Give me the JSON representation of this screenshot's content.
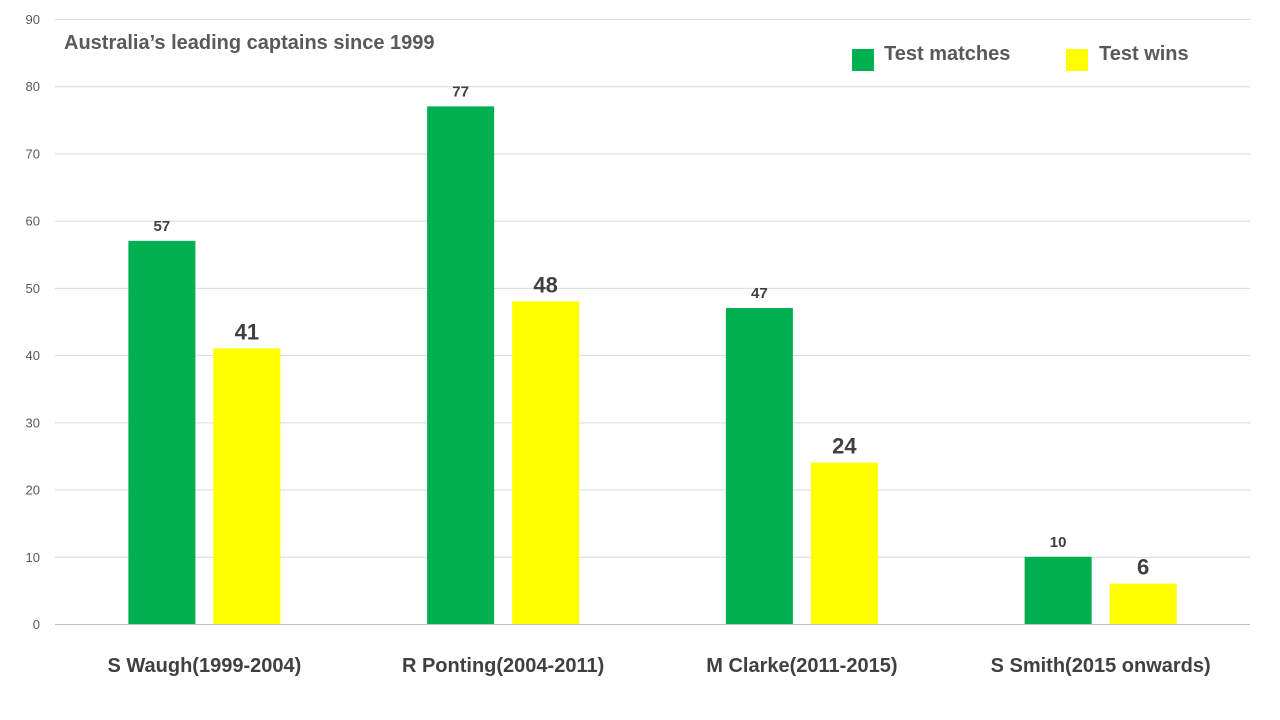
{
  "chart_data": {
    "type": "bar",
    "title": "Australia’s leading captains since 1999",
    "categories": [
      "S Waugh(1999-2004)",
      "R Ponting(2004-2011)",
      "M Clarke(2011-2015)",
      "S Smith(2015 onwards)"
    ],
    "series": [
      {
        "name": "Test matches",
        "color": "#00B050",
        "values": [
          57,
          77,
          47,
          10
        ]
      },
      {
        "name": "Test wins",
        "color": "#FFFF00",
        "values": [
          41,
          48,
          24,
          6
        ]
      }
    ],
    "xlabel": "",
    "ylabel": "",
    "ylim": [
      0,
      90
    ],
    "yticks": [
      0,
      10,
      20,
      30,
      40,
      50,
      60,
      70,
      80,
      90
    ],
    "grid": true,
    "legend_position": "top-right",
    "data_labels": true
  }
}
